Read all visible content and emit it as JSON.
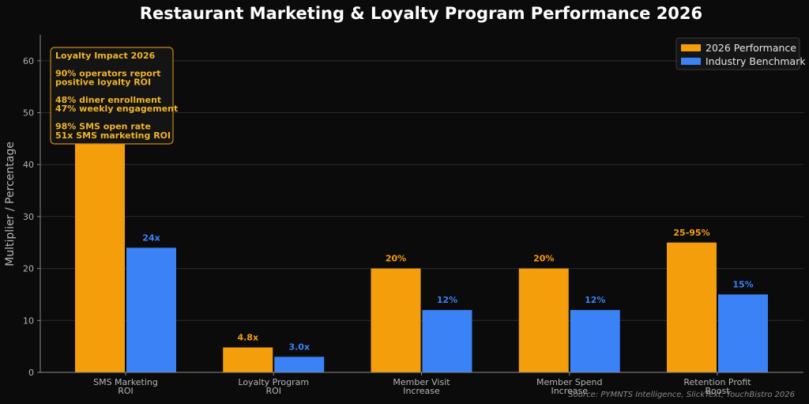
{
  "chart_data": {
    "type": "bar",
    "title": "Restaurant Marketing & Loyalty Program Performance 2026",
    "ylabel": "Multiplier / Percentage",
    "xlabel": "",
    "ylim": [
      0,
      65
    ],
    "yticks": [
      0,
      10,
      20,
      30,
      40,
      50,
      60
    ],
    "grid": true,
    "legend_position": "top-right",
    "categories": [
      [
        "SMS Marketing",
        "ROI"
      ],
      [
        "Loyalty Program",
        "ROI"
      ],
      [
        "Member Visit",
        "Increase"
      ],
      [
        "Member Spend",
        "Increase"
      ],
      [
        "Retention Profit",
        "Boost"
      ]
    ],
    "series": [
      {
        "name": "2026 Performance",
        "color": "#f59e0b",
        "values": [
          51,
          4.8,
          20,
          20,
          25
        ],
        "labels": [
          "",
          "4.8x",
          "20%",
          "20%",
          "25-95%"
        ]
      },
      {
        "name": "Industry Benchmark",
        "color": "#3b82f6",
        "values": [
          24,
          3.0,
          12,
          12,
          15
        ],
        "labels": [
          "24x",
          "3.0x",
          "12%",
          "12%",
          "15%"
        ]
      }
    ],
    "annotation": {
      "lines": [
        "Loyalty Impact 2026",
        "",
        "90% operators report",
        "positive loyalty ROI",
        "",
        "48% diner enrollment",
        "47% weekly engagement",
        "",
        "98% SMS open rate",
        "51x SMS marketing ROI"
      ]
    },
    "source": "Source: PYMNTS Intelligence, SlickText, TouchBistro 2026"
  }
}
